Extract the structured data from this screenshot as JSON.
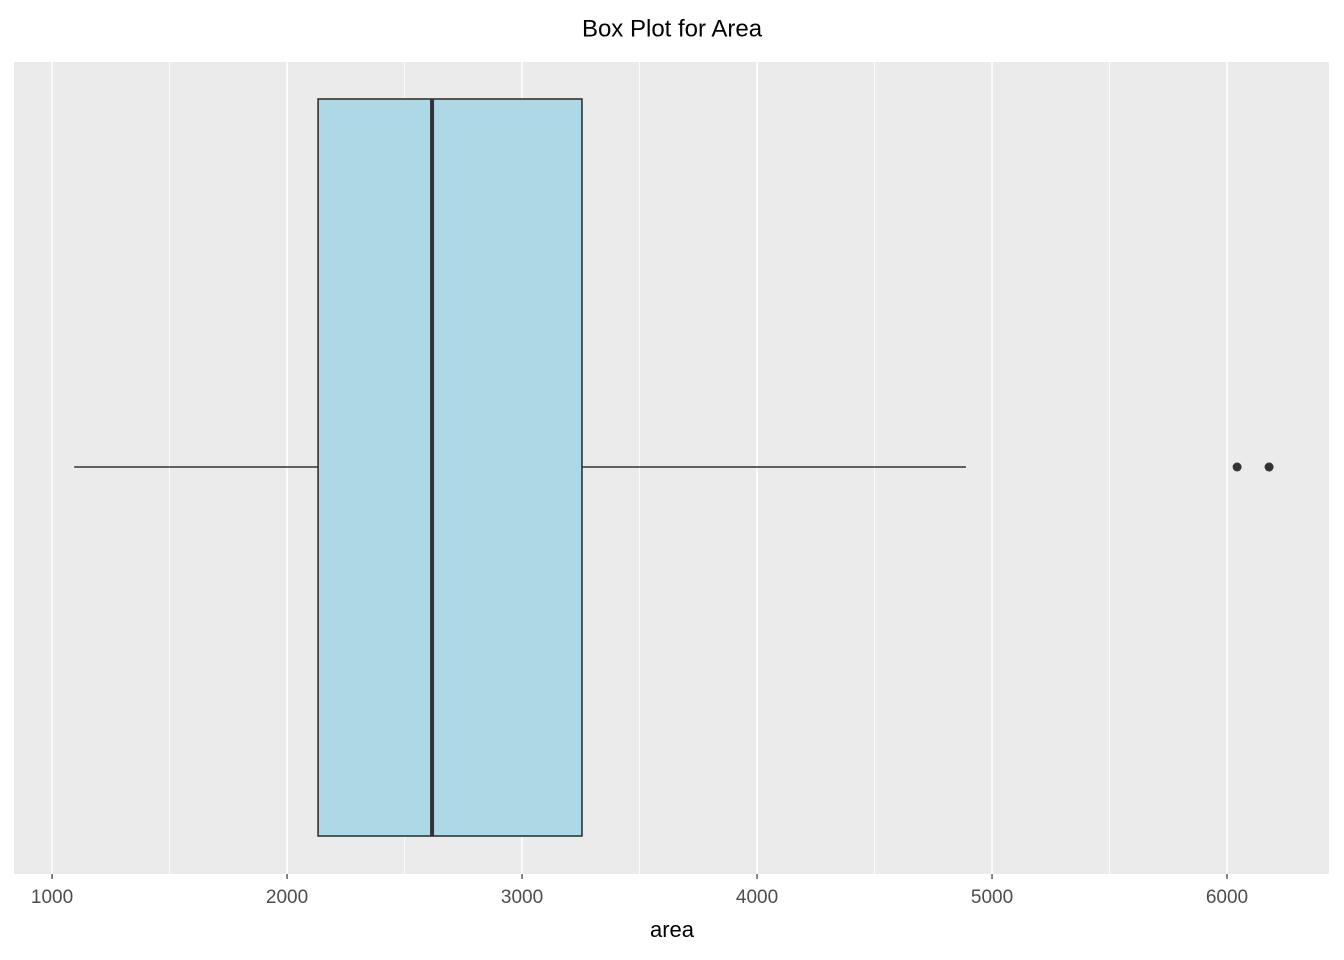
{
  "chart_data": {
    "type": "box",
    "title": "Box Plot for Area",
    "x_label": "area",
    "box": {
      "whislo": 1094,
      "q1": 2132,
      "median": 2617,
      "q3": 3255,
      "whishi": 4889,
      "outliers": [
        6043,
        6179
      ]
    },
    "fill": "#ADD8E6",
    "line_color": "#333333",
    "xlim": [
      838,
      6434
    ],
    "xticks": [
      1000,
      2000,
      3000,
      4000,
      5000,
      6000
    ],
    "xminorticks": [
      1500,
      2500,
      3500,
      4500,
      5500
    ],
    "grid": true
  }
}
